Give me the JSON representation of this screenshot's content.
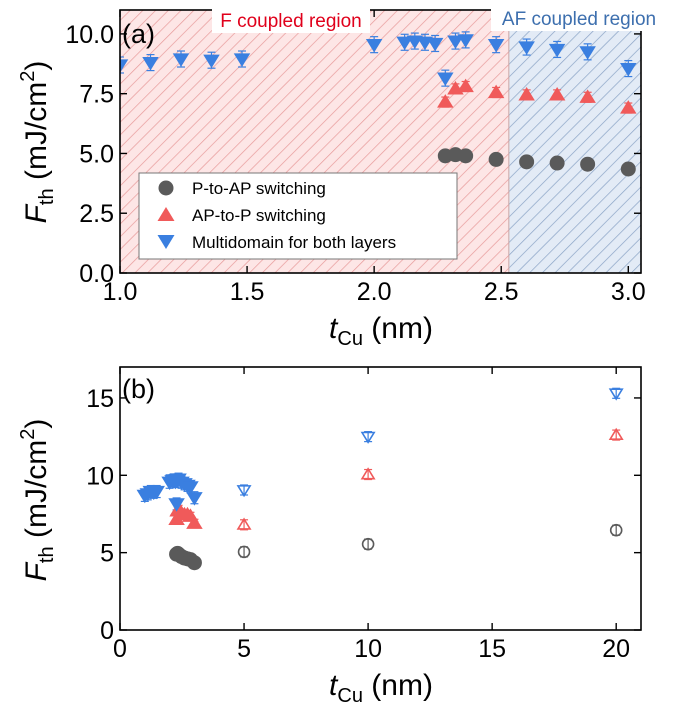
{
  "colors": {
    "p_to_ap": "#5a5a5a",
    "ap_to_p": "#f05a5a",
    "multi": "#3a7fe0",
    "f_region_fill": "#fde6e6",
    "f_region_hatch": "#e79a9a",
    "af_region_fill": "#e3ebf6",
    "af_region_hatch": "#8aa3c6",
    "f_region_text": "#e0001b",
    "af_region_text": "#3d6fae"
  },
  "chart_data": [
    {
      "panel": "(a)",
      "type": "scatter",
      "xlabel_main": "t",
      "xlabel_sub": "Cu",
      "xlabel_unit": " (nm)",
      "ylabel_main": "F",
      "ylabel_sub": "th",
      "ylabel_unit": " (mJ/cm",
      "ylabel_sup": "2",
      "ylabel_close": ")",
      "xlim": [
        1.0,
        3.05
      ],
      "ylim": [
        0.0,
        11.0
      ],
      "xticks": [
        "1.0",
        "1.5",
        "2.0",
        "2.5",
        "3.0"
      ],
      "yticks": [
        "0.0",
        "2.5",
        "5.0",
        "7.5",
        "10.0"
      ],
      "regions": [
        {
          "label": "F coupled region",
          "x_range": [
            1.0,
            2.53
          ]
        },
        {
          "label": "AF coupled region",
          "x_range": [
            2.53,
            3.05
          ]
        }
      ],
      "legend_position": "lower-left",
      "series": [
        {
          "name": "P-to-AP switching",
          "marker": "circle",
          "points": [
            [
              2.28,
              4.9
            ],
            [
              2.32,
              4.95
            ],
            [
              2.36,
              4.9
            ],
            [
              2.48,
              4.75
            ],
            [
              2.6,
              4.65
            ],
            [
              2.72,
              4.6
            ],
            [
              2.84,
              4.55
            ],
            [
              3.0,
              4.35
            ]
          ]
        },
        {
          "name": "AP-to-P switching",
          "marker": "triangle-up",
          "points": [
            [
              2.28,
              7.15
            ],
            [
              2.32,
              7.7
            ],
            [
              2.36,
              7.8
            ],
            [
              2.48,
              7.55
            ],
            [
              2.6,
              7.45
            ],
            [
              2.72,
              7.45
            ],
            [
              2.84,
              7.35
            ],
            [
              3.0,
              6.9
            ]
          ]
        },
        {
          "name": "Multidomain for both layers",
          "marker": "triangle-down",
          "points": [
            [
              1.0,
              8.7
            ],
            [
              1.12,
              8.8
            ],
            [
              1.24,
              8.95
            ],
            [
              1.36,
              8.9
            ],
            [
              1.48,
              8.95
            ],
            [
              2.0,
              9.55
            ],
            [
              2.12,
              9.65
            ],
            [
              2.16,
              9.7
            ],
            [
              2.2,
              9.65
            ],
            [
              2.24,
              9.6
            ],
            [
              2.28,
              8.15
            ],
            [
              2.32,
              9.7
            ],
            [
              2.36,
              9.75
            ],
            [
              2.48,
              9.55
            ],
            [
              2.6,
              9.45
            ],
            [
              2.72,
              9.35
            ],
            [
              2.84,
              9.25
            ],
            [
              3.0,
              8.55
            ]
          ]
        }
      ]
    },
    {
      "panel": "(b)",
      "type": "scatter",
      "xlabel_main": "t",
      "xlabel_sub": "Cu",
      "xlabel_unit": " (nm)",
      "ylabel_main": "F",
      "ylabel_sub": "th",
      "ylabel_unit": " (mJ/cm",
      "ylabel_sup": "2",
      "ylabel_close": ")",
      "xlim": [
        0,
        21
      ],
      "ylim": [
        0,
        17
      ],
      "xticks": [
        "0",
        "5",
        "10",
        "15",
        "20"
      ],
      "yticks": [
        "0",
        "5",
        "10",
        "15"
      ],
      "series": [
        {
          "name": "P-to-AP switching",
          "marker": "circle",
          "filled_points": [
            [
              2.28,
              4.9
            ],
            [
              2.32,
              4.95
            ],
            [
              2.36,
              4.9
            ],
            [
              2.48,
              4.75
            ],
            [
              2.6,
              4.65
            ],
            [
              2.72,
              4.6
            ],
            [
              2.84,
              4.55
            ],
            [
              3.0,
              4.35
            ]
          ],
          "open_points": [
            [
              5,
              5.05
            ],
            [
              10,
              5.55
            ],
            [
              20,
              6.45
            ]
          ]
        },
        {
          "name": "AP-to-P switching",
          "marker": "triangle-up",
          "filled_points": [
            [
              2.28,
              7.15
            ],
            [
              2.32,
              7.7
            ],
            [
              2.36,
              7.8
            ],
            [
              2.48,
              7.55
            ],
            [
              2.6,
              7.45
            ],
            [
              2.72,
              7.45
            ],
            [
              2.84,
              7.35
            ],
            [
              3.0,
              6.9
            ]
          ],
          "open_points": [
            [
              5,
              6.8
            ],
            [
              10,
              10.05
            ],
            [
              20,
              12.6
            ]
          ]
        },
        {
          "name": "Multidomain for both layers",
          "marker": "triangle-down",
          "filled_points": [
            [
              1.0,
              8.7
            ],
            [
              1.12,
              8.8
            ],
            [
              1.24,
              8.95
            ],
            [
              1.36,
              8.9
            ],
            [
              1.48,
              8.95
            ],
            [
              2.0,
              9.55
            ],
            [
              2.12,
              9.65
            ],
            [
              2.16,
              9.7
            ],
            [
              2.2,
              9.65
            ],
            [
              2.24,
              9.6
            ],
            [
              2.28,
              8.15
            ],
            [
              2.32,
              9.7
            ],
            [
              2.36,
              9.75
            ],
            [
              2.48,
              9.55
            ],
            [
              2.6,
              9.45
            ],
            [
              2.72,
              9.35
            ],
            [
              2.84,
              9.25
            ],
            [
              3.0,
              8.55
            ]
          ],
          "open_points": [
            [
              5,
              9.05
            ],
            [
              10,
              12.5
            ],
            [
              20,
              15.3
            ]
          ]
        }
      ]
    }
  ]
}
